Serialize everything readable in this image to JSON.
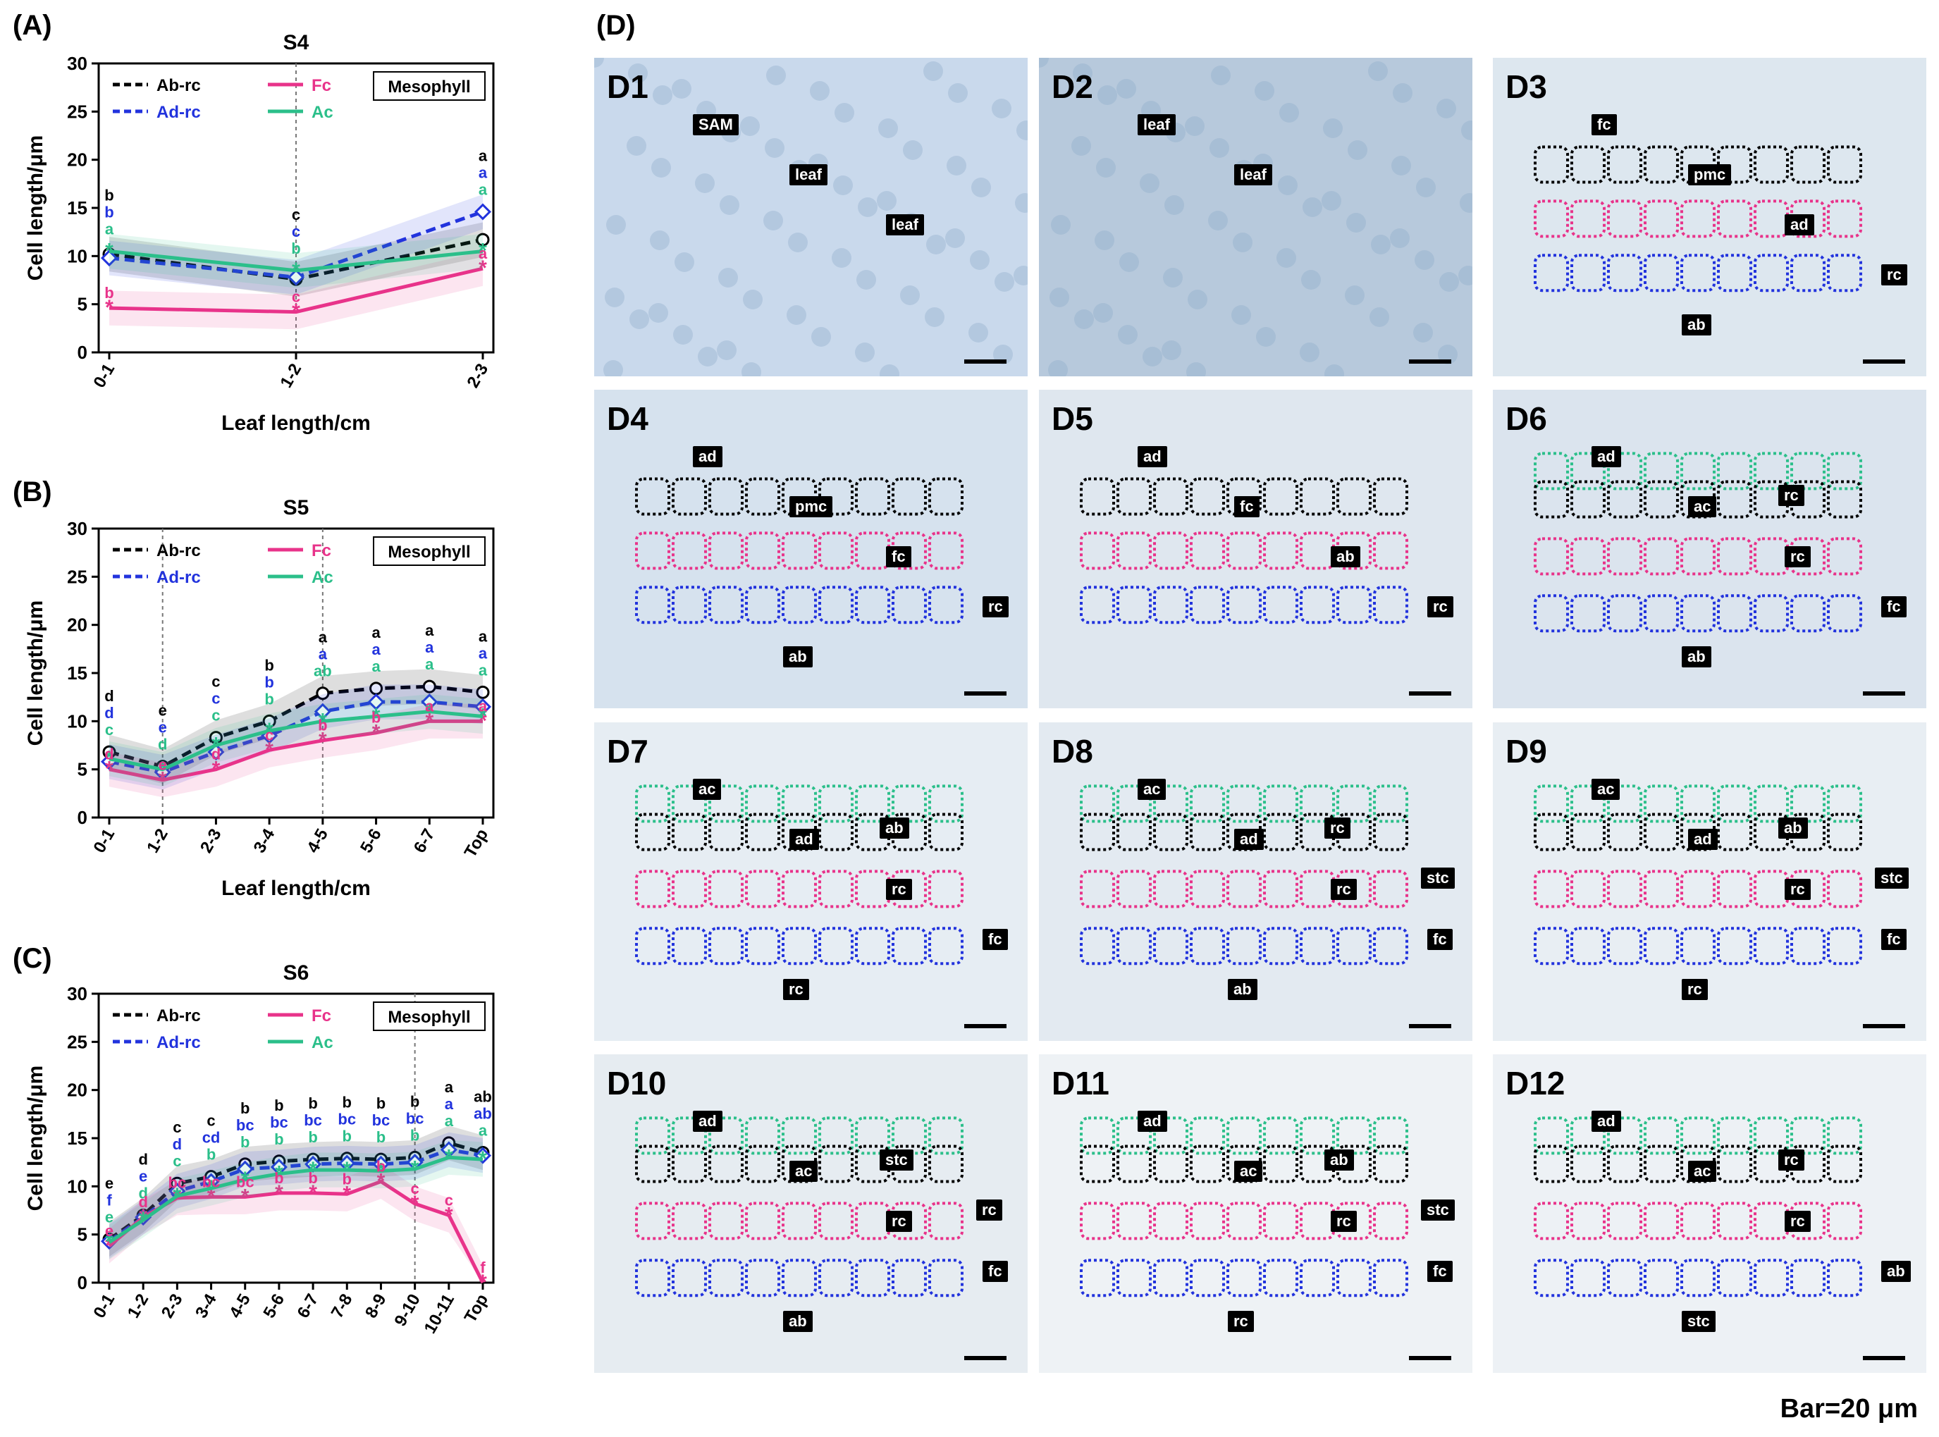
{
  "panels": {
    "A": "(A)",
    "B": "(B)",
    "C": "(C)",
    "D": "(D)"
  },
  "charts": [
    {
      "id": "A",
      "title": "S4",
      "badge": "Mesophyll",
      "xlabel": "Leaf length/cm",
      "ylabel": "Cell length/μm"
    },
    {
      "id": "B",
      "title": "S5",
      "badge": "Mesophyll",
      "xlabel": "Leaf length/cm",
      "ylabel": "Cell length/μm"
    },
    {
      "id": "C",
      "title": "S6",
      "badge": "Mesophyll",
      "xlabel": "",
      "ylabel": "Cell length/μm"
    }
  ],
  "legend": {
    "ab_rc": "Ab-rc",
    "ad_rc": "Ad-rc",
    "fc": "Fc",
    "ac": "Ac"
  },
  "colors": {
    "ab_rc": "#000000",
    "ad_rc": "#2233dd",
    "fc": "#e8338a",
    "ac": "#2bbf8a"
  },
  "chart_data": [
    {
      "type": "line",
      "title": "S4",
      "xlabel": "Leaf length/cm",
      "ylabel": "Cell length/μm",
      "ylim": [
        0,
        30
      ],
      "categories": [
        "0-1",
        "1-2",
        "2-3"
      ],
      "series": [
        {
          "name": "Ab-rc",
          "values": [
            10.2,
            7.6,
            11.7
          ],
          "letters": [
            "b",
            "c",
            "a"
          ]
        },
        {
          "name": "Ad-rc",
          "values": [
            9.8,
            7.8,
            14.6
          ],
          "letters": [
            "b",
            "c",
            "a"
          ]
        },
        {
          "name": "Fc",
          "values": [
            4.6,
            4.2,
            8.7
          ],
          "letters": [
            "b",
            "c",
            "a"
          ]
        },
        {
          "name": "Ac",
          "values": [
            10.5,
            8.5,
            10.5
          ],
          "letters": [
            "a",
            "b",
            "a"
          ]
        }
      ],
      "vlines": [
        1
      ]
    },
    {
      "type": "line",
      "title": "S5",
      "xlabel": "Leaf length/cm",
      "ylabel": "Cell length/μm",
      "ylim": [
        0,
        30
      ],
      "categories": [
        "0-1",
        "1-2",
        "2-3",
        "3-4",
        "4-5",
        "5-6",
        "6-7",
        "Top"
      ],
      "series": [
        {
          "name": "Ab-rc",
          "values": [
            6.8,
            5.3,
            8.3,
            10.0,
            12.9,
            13.4,
            13.6,
            13.0
          ],
          "letters": [
            "d",
            "e",
            "c",
            "b",
            "a",
            "a",
            "a",
            "a"
          ]
        },
        {
          "name": "Ad-rc",
          "values": [
            5.8,
            4.7,
            6.8,
            8.5,
            11.0,
            12.0,
            12.0,
            11.5
          ],
          "letters": [
            "d",
            "e",
            "c",
            "b",
            "a",
            "a",
            "a",
            "a"
          ]
        },
        {
          "name": "Fc",
          "values": [
            5.0,
            3.9,
            5.0,
            7.0,
            8.0,
            8.8,
            10.0,
            10.0
          ],
          "letters": [
            "d",
            "e",
            "d",
            "c",
            "b",
            "b",
            "a",
            "a"
          ]
        },
        {
          "name": "Ac",
          "values": [
            6.1,
            5.0,
            7.5,
            9.0,
            10.0,
            10.5,
            11.0,
            10.5
          ],
          "letters": [
            "c",
            "d",
            "c",
            "b",
            "ab",
            "a",
            "a",
            "a"
          ]
        }
      ],
      "vlines": [
        1,
        4
      ]
    },
    {
      "type": "line",
      "title": "S6",
      "xlabel": "",
      "ylabel": "Cell length/μm",
      "ylim": [
        0,
        30
      ],
      "categories": [
        "0-1",
        "1-2",
        "2-3",
        "3-4",
        "4-5",
        "5-6",
        "6-7",
        "7-8",
        "8-9",
        "9-10",
        "10-11",
        "Top"
      ],
      "series": [
        {
          "name": "Ab-rc",
          "values": [
            4.5,
            7.0,
            10.3,
            11.0,
            12.3,
            12.6,
            12.8,
            12.9,
            12.8,
            13.0,
            14.5,
            13.5
          ],
          "letters": [
            "e",
            "d",
            "c",
            "c",
            "b",
            "b",
            "b",
            "b",
            "b",
            "b",
            "a",
            "ab"
          ]
        },
        {
          "name": "Ad-rc",
          "values": [
            4.3,
            6.8,
            9.5,
            10.5,
            11.8,
            12.0,
            12.3,
            12.4,
            12.3,
            12.5,
            13.8,
            13.2
          ],
          "letters": [
            "f",
            "e",
            "d",
            "cd",
            "bc",
            "bc",
            "bc",
            "bc",
            "bc",
            "bc",
            "a",
            "ab"
          ]
        },
        {
          "name": "Fc",
          "values": [
            3.8,
            6.8,
            8.8,
            8.9,
            8.9,
            9.3,
            9.3,
            9.2,
            10.5,
            8.2,
            7.0,
            0.0
          ],
          "letters": [
            "e",
            "d",
            "bc",
            "bc",
            "bc",
            "b",
            "b",
            "b",
            "b",
            "c",
            "c",
            "f"
          ]
        },
        {
          "name": "Ac",
          "values": [
            4.2,
            6.5,
            9.0,
            9.8,
            10.7,
            11.3,
            11.7,
            11.7,
            11.6,
            11.8,
            13.0,
            12.8
          ],
          "letters": [
            "e",
            "d",
            "c",
            "b",
            "b",
            "b",
            "b",
            "b",
            "b",
            "b",
            "a",
            "a"
          ]
        }
      ],
      "vlines": [
        9
      ]
    }
  ],
  "micro": [
    {
      "label": "D1",
      "tags": [
        "SAM",
        "leaf",
        "leaf"
      ]
    },
    {
      "label": "D2",
      "tags": [
        "leaf",
        "leaf"
      ]
    },
    {
      "label": "D3",
      "tags": [
        "fc",
        "pmc",
        "ad",
        "rc",
        "ab"
      ]
    },
    {
      "label": "D4",
      "tags": [
        "ad",
        "pmc",
        "fc",
        "rc",
        "ab"
      ]
    },
    {
      "label": "D5",
      "tags": [
        "ad",
        "fc",
        "ab",
        "rc"
      ]
    },
    {
      "label": "D6",
      "tags": [
        "ad",
        "ac",
        "rc",
        "fc",
        "ab",
        "rc"
      ]
    },
    {
      "label": "D7",
      "tags": [
        "ac",
        "ad",
        "rc",
        "fc",
        "rc",
        "ab"
      ]
    },
    {
      "label": "D8",
      "tags": [
        "ac",
        "ad",
        "rc",
        "fc",
        "ab",
        "rc",
        "stc"
      ]
    },
    {
      "label": "D9",
      "tags": [
        "ac",
        "ad",
        "rc",
        "fc",
        "rc",
        "ab",
        "stc"
      ]
    },
    {
      "label": "D10",
      "tags": [
        "ad",
        "ac",
        "rc",
        "fc",
        "ab",
        "stc",
        "rc"
      ]
    },
    {
      "label": "D11",
      "tags": [
        "ad",
        "ac",
        "rc",
        "fc",
        "rc",
        "ab",
        "stc"
      ]
    },
    {
      "label": "D12",
      "tags": [
        "ad",
        "ac",
        "rc",
        "ab",
        "stc",
        "rc"
      ]
    }
  ],
  "bar_label": "Bar=20 μm"
}
